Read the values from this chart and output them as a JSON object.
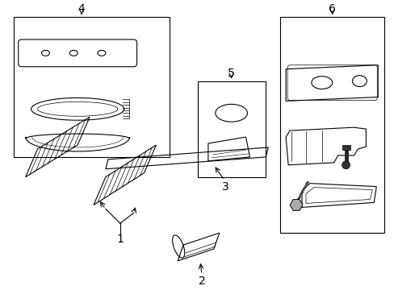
{
  "bg_color": "#ffffff",
  "line_color": "#000000",
  "label_fontsize": 10,
  "figsize": [
    4.89,
    3.6
  ],
  "dpi": 100
}
